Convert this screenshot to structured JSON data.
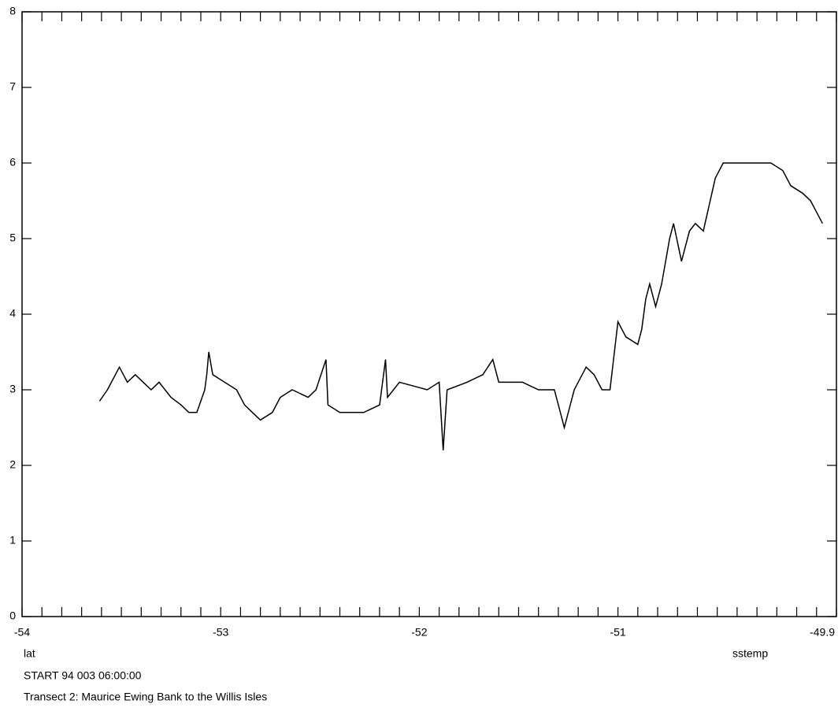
{
  "chart_data": {
    "type": "line",
    "title": "Transect 2: Maurice Ewing Bank to the Willis Isles",
    "subtitle": "START 94 003 06:00:00",
    "xlabel": "lat",
    "ylabel": "sstemp",
    "color": "#000000",
    "xlim": [
      -54,
      -49.9
    ],
    "ylim": [
      0,
      8
    ],
    "xticks": [
      -54,
      -53,
      -52,
      -51,
      -49.9
    ],
    "yticks": [
      0,
      1,
      2,
      3,
      4,
      5,
      6,
      7,
      8
    ],
    "xminorticks": [
      -54,
      -53.9,
      -53.8,
      -53.7,
      -53.6,
      -53.5,
      -53.4,
      -53.3,
      -53.2,
      -53.1,
      -53,
      -52.9,
      -52.8,
      -52.7,
      -52.6,
      -52.5,
      -52.4,
      -52.3,
      -52.2,
      -52.1,
      -52,
      -51.9,
      -51.8,
      -51.7,
      -51.6,
      -51.5,
      -51.4,
      -51.3,
      -51.2,
      -51.1,
      -51,
      -50.9,
      -50.8,
      -50.7,
      -50.6,
      -50.5,
      -50.4,
      -50.3,
      -50.2,
      -50.1,
      -50,
      -49.9
    ],
    "series": [
      {
        "name": "sstemp",
        "color": "#000000",
        "x": [
          -53.61,
          -53.57,
          -53.53,
          -53.51,
          -53.47,
          -53.43,
          -53.39,
          -53.35,
          -53.31,
          -53.25,
          -53.2,
          -53.16,
          -53.12,
          -53.08,
          -53.07,
          -53.06,
          -53.04,
          -52.98,
          -52.92,
          -52.88,
          -52.84,
          -52.8,
          -52.74,
          -52.7,
          -52.64,
          -52.56,
          -52.52,
          -52.47,
          -52.46,
          -52.4,
          -52.28,
          -52.2,
          -52.17,
          -52.16,
          -52.1,
          -51.96,
          -51.9,
          -51.88,
          -51.86,
          -51.76,
          -51.68,
          -51.63,
          -51.6,
          -51.48,
          -51.4,
          -51.32,
          -51.27,
          -51.22,
          -51.16,
          -51.12,
          -51.08,
          -51.04,
          -51,
          -50.96,
          -50.9,
          -50.88,
          -50.86,
          -50.84,
          -50.81,
          -50.78,
          -50.74,
          -50.72,
          -50.68,
          -50.64,
          -50.61,
          -50.57,
          -50.51,
          -50.47,
          -50.23,
          -50.17,
          -50.13,
          -50.07,
          -50.03,
          -49.99,
          -49.97
        ],
        "values": [
          2.85,
          3.0,
          3.2,
          3.3,
          3.1,
          3.2,
          3.1,
          3.0,
          3.1,
          2.9,
          2.8,
          2.7,
          2.7,
          3.0,
          3.2,
          3.5,
          3.2,
          3.1,
          3.0,
          2.8,
          2.7,
          2.6,
          2.7,
          2.9,
          3.0,
          2.9,
          3.0,
          3.4,
          2.8,
          2.7,
          2.7,
          2.8,
          3.4,
          2.9,
          3.1,
          3.0,
          3.1,
          2.2,
          3.0,
          3.1,
          3.2,
          3.4,
          3.1,
          3.1,
          3.0,
          3.0,
          2.5,
          3.0,
          3.3,
          3.2,
          3.0,
          3.0,
          3.9,
          3.7,
          3.6,
          3.8,
          4.2,
          4.4,
          4.1,
          4.4,
          5.0,
          5.2,
          4.7,
          5.1,
          5.2,
          5.1,
          5.8,
          6.0,
          6.0,
          5.9,
          5.7,
          5.6,
          5.5,
          5.3,
          5.2
        ]
      }
    ]
  }
}
